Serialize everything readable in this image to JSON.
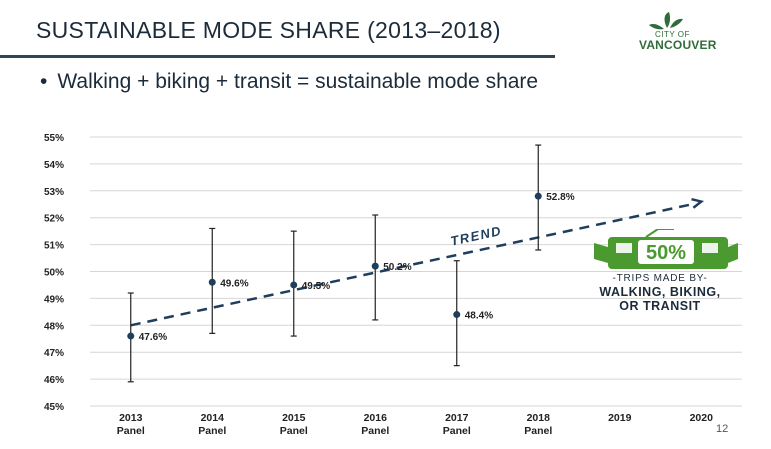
{
  "slide": {
    "title": "SUSTAINABLE MODE SHARE (2013–2018)",
    "bullet": "Walking + biking + transit  = sustainable mode share",
    "page_number": "12"
  },
  "logo": {
    "line1": "CITY OF",
    "line2": "VANCOUVER",
    "color": "#2f6c39"
  },
  "badge": {
    "value": "50%",
    "caption_line1": "-TRIPS MADE BY-",
    "caption_line2": "WALKING, BIKING,",
    "caption_line3": "OR TRANSIT",
    "color": "#4a9a2f",
    "icon": "train-icon"
  },
  "chart_data": {
    "type": "scatter",
    "title": "",
    "xlabel": "",
    "ylabel": "",
    "categories": [
      [
        "2013",
        "Panel"
      ],
      [
        "2014",
        "Panel"
      ],
      [
        "2015",
        "Panel"
      ],
      [
        "2016",
        "Panel"
      ],
      [
        "2017",
        "Panel"
      ],
      [
        "2018",
        "Panel"
      ],
      [
        "2019",
        ""
      ],
      [
        "2020",
        ""
      ]
    ],
    "ylim": [
      45,
      55
    ],
    "yticks": [
      45,
      46,
      47,
      48,
      49,
      50,
      51,
      52,
      53,
      54,
      55
    ],
    "ytick_labels": [
      "45%",
      "46%",
      "47%",
      "48%",
      "49%",
      "50%",
      "51%",
      "52%",
      "53%",
      "54%",
      "55%"
    ],
    "grid": true,
    "points": [
      {
        "category": 0,
        "value": 47.6,
        "label": "47.6%",
        "err_low": 45.9,
        "err_high": 49.2
      },
      {
        "category": 1,
        "value": 49.6,
        "label": "49.6%",
        "err_low": 47.7,
        "err_high": 51.6
      },
      {
        "category": 2,
        "value": 49.5,
        "label": "49.5%",
        "err_low": 47.6,
        "err_high": 51.5
      },
      {
        "category": 3,
        "value": 50.2,
        "label": "50.2%",
        "err_low": 48.2,
        "err_high": 52.1
      },
      {
        "category": 4,
        "value": 48.4,
        "label": "48.4%",
        "err_low": 46.5,
        "err_high": 50.4
      },
      {
        "category": 5,
        "value": 52.8,
        "label": "52.8%",
        "err_low": 50.8,
        "err_high": 54.7
      }
    ],
    "trend": {
      "label": "TREND",
      "start": {
        "category": 0,
        "value": 48.0
      },
      "end": {
        "category": 7,
        "value": 52.6
      }
    },
    "colors": {
      "point": "#1f3d5c",
      "trend": "#1f3d5c",
      "grid": "#d6d6d6",
      "errorbar": "#222222"
    }
  }
}
